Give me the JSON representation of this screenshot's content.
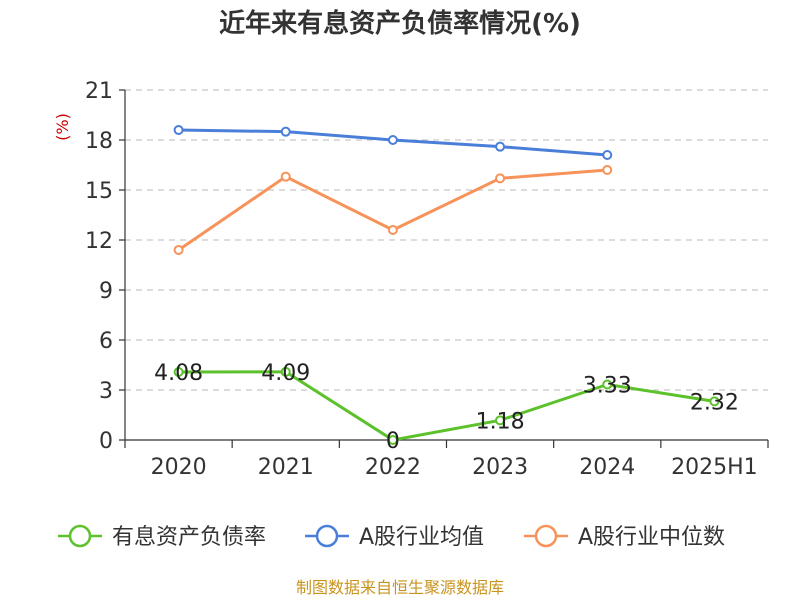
{
  "chart_data": {
    "type": "line",
    "title": "近年来有息资产负债率情况(%)",
    "ylabel": "(%)",
    "categories": [
      "2020",
      "2021",
      "2022",
      "2023",
      "2024",
      "2025H1"
    ],
    "ylim": [
      0,
      21
    ],
    "yticks": [
      0,
      3,
      6,
      9,
      12,
      15,
      18,
      21
    ],
    "grid": true,
    "legend_position": "bottom",
    "series": [
      {
        "name": "有息资产负债率",
        "color": "#5cc12b",
        "values": [
          4.08,
          4.09,
          0,
          1.18,
          3.33,
          2.32
        ],
        "labels": [
          "4.08",
          "4.09",
          "0",
          "1.18",
          "3.33",
          "2.32"
        ]
      },
      {
        "name": "A股行业均值",
        "color": "#4a7fd9",
        "values": [
          18.6,
          18.5,
          18.0,
          17.6,
          17.1,
          null
        ]
      },
      {
        "name": "A股行业中位数",
        "color": "#f7935a",
        "values": [
          11.4,
          15.8,
          12.6,
          15.7,
          16.2,
          null
        ]
      }
    ]
  },
  "source": "制图数据来自恒生聚源数据库"
}
